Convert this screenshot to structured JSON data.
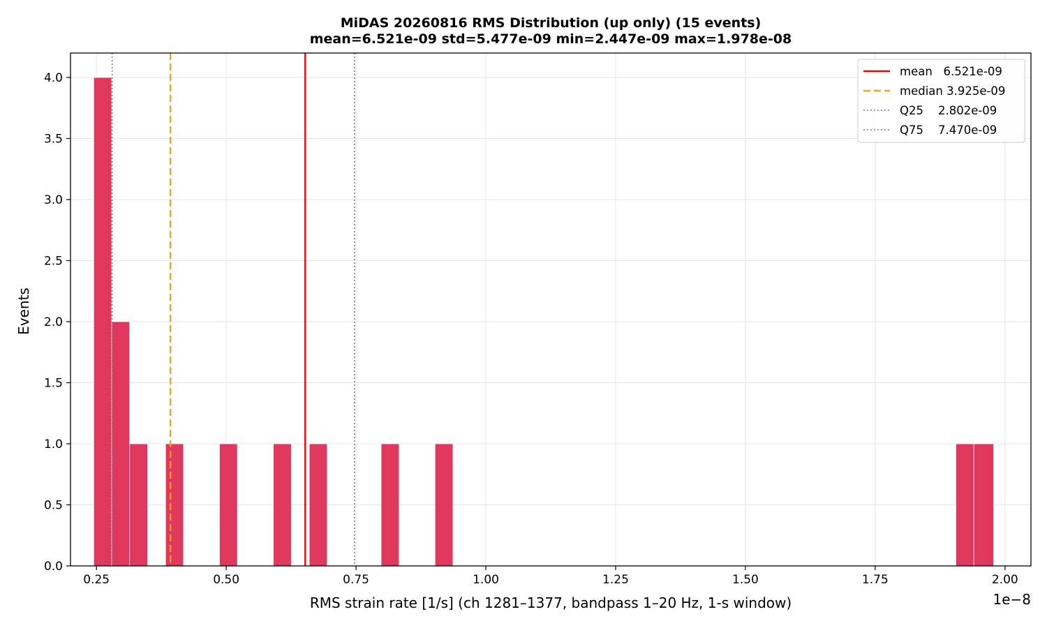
{
  "chart_data": {
    "type": "bar",
    "subtype": "histogram",
    "title": "MiDAS 20260816  RMS Distribution  (up only)  (15 events)",
    "subtitle": "mean=6.521e-09  std=5.477e-09  min=2.447e-09  max=1.978e-08",
    "xlabel": "RMS strain rate [1/s]  (ch 1281–1377, bandpass 1–20 Hz, 1-s window)",
    "ylabel": "Events",
    "x_offset_label": "1e−8",
    "xlim": [
      0.2,
      2.05
    ],
    "ylim": [
      0,
      4.2
    ],
    "x_scale_note": "x values in units of 1e-8",
    "xticks": [
      {
        "value": 0.25,
        "label": "0.25"
      },
      {
        "value": 0.5,
        "label": "0.50"
      },
      {
        "value": 0.75,
        "label": "0.75"
      },
      {
        "value": 1.0,
        "label": "1.00"
      },
      {
        "value": 1.25,
        "label": "1.25"
      },
      {
        "value": 1.5,
        "label": "1.50"
      },
      {
        "value": 1.75,
        "label": "1.75"
      },
      {
        "value": 2.0,
        "label": "2.00"
      }
    ],
    "yticks": [
      {
        "value": 0.0,
        "label": "0.0"
      },
      {
        "value": 0.5,
        "label": "0.5"
      },
      {
        "value": 1.0,
        "label": "1.0"
      },
      {
        "value": 1.5,
        "label": "1.5"
      },
      {
        "value": 2.0,
        "label": "2.0"
      },
      {
        "value": 2.5,
        "label": "2.5"
      },
      {
        "value": 3.0,
        "label": "3.0"
      },
      {
        "value": 3.5,
        "label": "3.5"
      },
      {
        "value": 4.0,
        "label": "4.0"
      }
    ],
    "grid": true,
    "bar_color": "#e0385c",
    "bins": [
      {
        "x0": 0.2447,
        "x1": 0.2793,
        "count": 4
      },
      {
        "x0": 0.2793,
        "x1": 0.3139,
        "count": 2
      },
      {
        "x0": 0.3139,
        "x1": 0.3485,
        "count": 1
      },
      {
        "x0": 0.3831,
        "x1": 0.4177,
        "count": 1
      },
      {
        "x0": 0.4869,
        "x1": 0.5215,
        "count": 1
      },
      {
        "x0": 0.5907,
        "x1": 0.6253,
        "count": 1
      },
      {
        "x0": 0.6599,
        "x1": 0.6945,
        "count": 1
      },
      {
        "x0": 0.7983,
        "x1": 0.8329,
        "count": 1
      },
      {
        "x0": 0.9021,
        "x1": 0.9367,
        "count": 1
      },
      {
        "x0": 1.9055,
        "x1": 1.9401,
        "count": 1
      },
      {
        "x0": 1.9401,
        "x1": 1.978,
        "count": 1
      }
    ],
    "reference_lines": [
      {
        "name": "mean",
        "value": 0.6521,
        "color": "#ff0000",
        "style": "solid",
        "legend_label": "mean   6.521e-09"
      },
      {
        "name": "median",
        "value": 0.3925,
        "color": "#ffa500",
        "style": "dashed",
        "legend_label": "median 3.925e-09"
      },
      {
        "name": "Q25",
        "value": 0.2802,
        "color": "#808080",
        "style": "dotted",
        "legend_label": "Q25    2.802e-09"
      },
      {
        "name": "Q75",
        "value": 0.747,
        "color": "#808080",
        "style": "dotted",
        "legend_label": "Q75    7.470e-09"
      }
    ],
    "legend_position": "top-right"
  }
}
